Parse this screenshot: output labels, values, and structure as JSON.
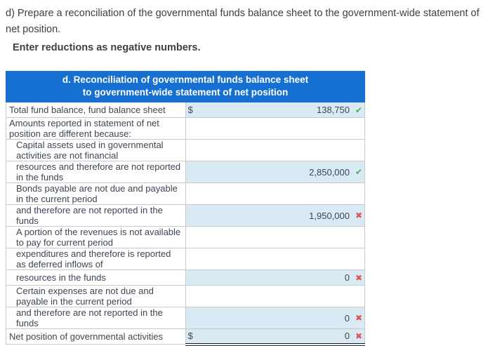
{
  "instructions": {
    "question": "d) Prepare a reconciliation of the governmental funds balance sheet to the government-wide statement of net position.",
    "note": "Enter reductions as negative numbers."
  },
  "table": {
    "header_line1": "d. Reconciliation of governmental funds balance sheet",
    "header_line2": "to government-wide statement of net position",
    "icons": {
      "check": "✔",
      "cross": "✖"
    },
    "rows": [
      {
        "label": "Total fund balance, fund balance sheet",
        "indent": false,
        "currency": "$",
        "value": "138,750",
        "status": "correct"
      },
      {
        "label": "Amounts reported in statement of net position are different because:",
        "indent": false
      },
      {
        "label": "Capital assets used in governmental activities are not financial",
        "indent": true
      },
      {
        "label": "resources and therefore are not reported in the funds",
        "indent": true,
        "value": "2,850,000",
        "status": "correct"
      },
      {
        "label": "Bonds payable are not due and payable in the current period",
        "indent": true
      },
      {
        "label": "and therefore are not reported in the funds",
        "indent": true,
        "value": "1,950,000",
        "status": "incorrect"
      },
      {
        "label": "A portion of the revenues is not available to pay for current period",
        "indent": true
      },
      {
        "label": "expenditures and therefore is reported as deferred inflows of",
        "indent": true
      },
      {
        "label": "resources in the funds",
        "indent": true,
        "value": "0",
        "status": "incorrect"
      },
      {
        "label": "Certain expenses are not due and payable in the current period",
        "indent": true
      },
      {
        "label": "and therefore are not reported in the funds",
        "indent": true,
        "value": "0",
        "status": "incorrect"
      },
      {
        "label": "Net position of governmental activities",
        "indent": false,
        "currency": "$",
        "value": "0",
        "status": "incorrect",
        "total": true
      }
    ]
  },
  "colors": {
    "header_bg": "#1570d2",
    "header_text": "#ffffff",
    "input_cell_bg": "#d9eaf4",
    "correct_green": "#4aad52",
    "incorrect_red": "#dd5555",
    "border_gray": "#c9c9c9",
    "text_dark": "#404040",
    "text_table": "#3d4654",
    "total_rule": "#222222"
  }
}
